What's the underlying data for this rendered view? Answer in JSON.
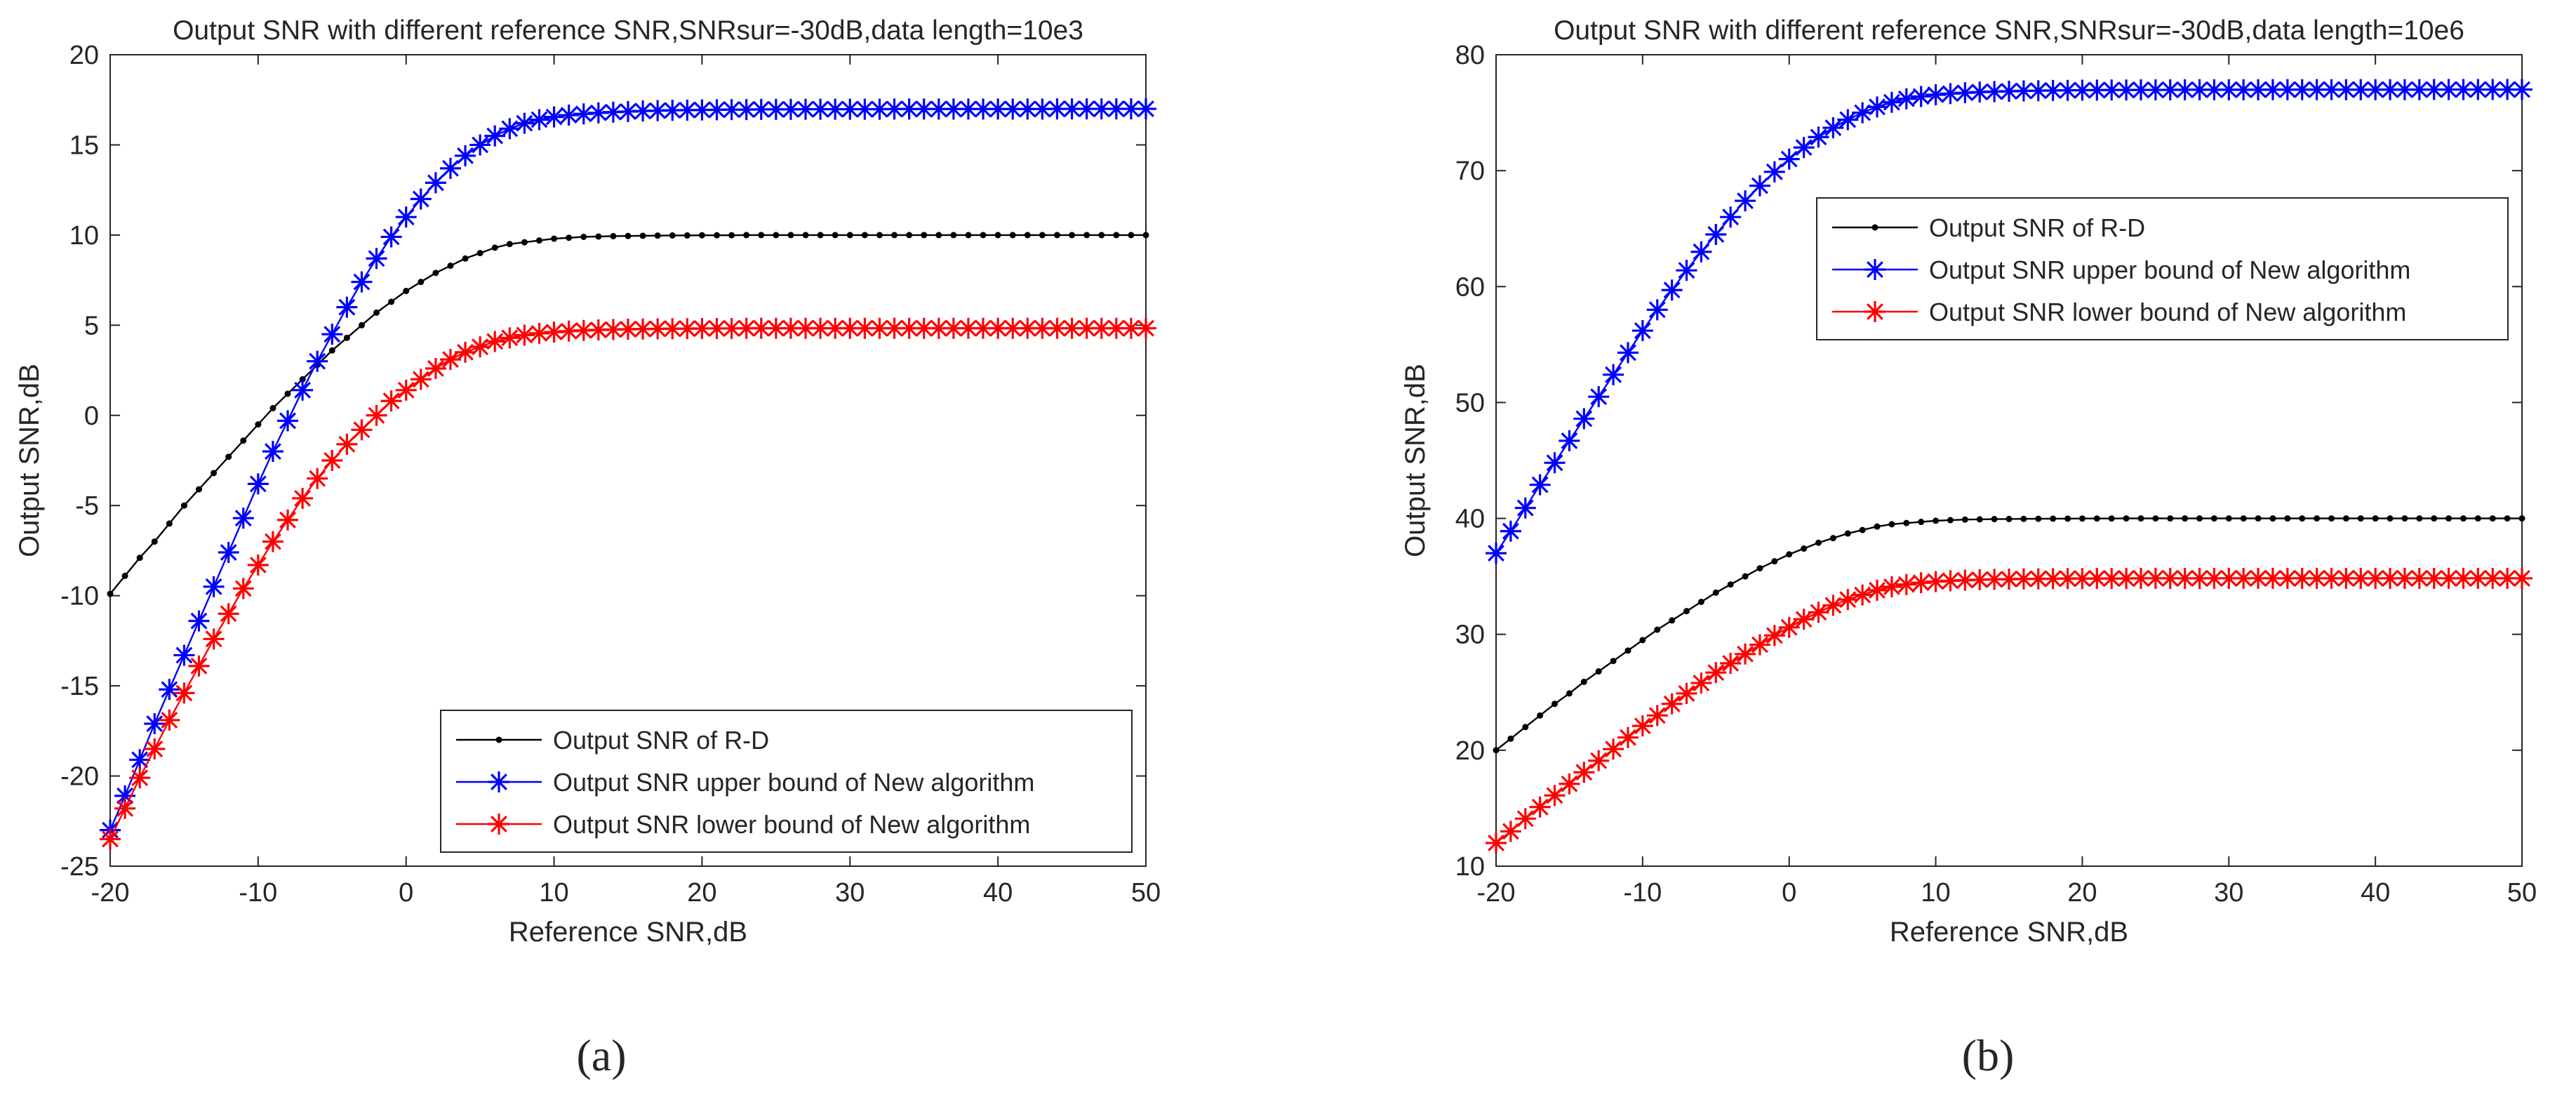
{
  "chart_data": [
    {
      "type": "line",
      "panel": "a",
      "panel_label": "(a)",
      "title": "Output SNR with different reference SNR,SNRsur=-30dB,data length=10e3",
      "xlabel": "Reference SNR,dB",
      "ylabel": "Output SNR,dB",
      "xlim": [
        -20,
        50
      ],
      "ylim": [
        -25,
        20
      ],
      "xticks": [
        -20,
        -10,
        0,
        10,
        20,
        30,
        40,
        50
      ],
      "yticks": [
        -25,
        -20,
        -15,
        -10,
        -5,
        0,
        5,
        10,
        15,
        20
      ],
      "grid": false,
      "legend_position": "bottom-right",
      "series": [
        {
          "name": "Output SNR of R-D",
          "color": "#000000",
          "marker": "dot",
          "x": [
            -20,
            -19,
            -18,
            -17,
            -16,
            -15,
            -14,
            -13,
            -12,
            -11,
            -10,
            -9,
            -8,
            -7,
            -6,
            -5,
            -4,
            -3,
            -2,
            -1,
            0,
            1,
            2,
            3,
            4,
            5,
            6,
            7,
            8,
            9,
            10,
            11,
            12,
            13,
            14,
            15,
            16,
            17,
            18,
            19,
            20,
            21,
            22,
            23,
            24,
            25,
            26,
            27,
            28,
            29,
            30,
            31,
            32,
            33,
            34,
            35,
            36,
            37,
            38,
            39,
            40,
            41,
            42,
            43,
            44,
            45,
            46,
            47,
            48,
            49,
            50
          ],
          "values": [
            -9.9,
            -8.9,
            -7.9,
            -7.0,
            -6.0,
            -5.0,
            -4.1,
            -3.2,
            -2.3,
            -1.4,
            -0.5,
            0.4,
            1.2,
            2.0,
            2.8,
            3.6,
            4.3,
            5.0,
            5.7,
            6.3,
            6.9,
            7.4,
            7.9,
            8.3,
            8.7,
            9.0,
            9.3,
            9.5,
            9.6,
            9.7,
            9.8,
            9.85,
            9.9,
            9.92,
            9.94,
            9.95,
            9.96,
            9.97,
            9.98,
            9.98,
            9.99,
            9.99,
            9.99,
            10,
            10,
            10,
            10,
            10,
            10,
            10,
            10,
            10,
            10,
            10,
            10,
            10,
            10,
            10,
            10,
            10,
            10,
            10,
            10,
            10,
            10,
            10,
            10,
            10,
            10,
            10,
            10
          ]
        },
        {
          "name": "Output SNR upper bound of New algorithm",
          "color": "#0000ff",
          "marker": "star",
          "x": [
            -20,
            -19,
            -18,
            -17,
            -16,
            -15,
            -14,
            -13,
            -12,
            -11,
            -10,
            -9,
            -8,
            -7,
            -6,
            -5,
            -4,
            -3,
            -2,
            -1,
            0,
            1,
            2,
            3,
            4,
            5,
            6,
            7,
            8,
            9,
            10,
            11,
            12,
            13,
            14,
            15,
            16,
            17,
            18,
            19,
            20,
            21,
            22,
            23,
            24,
            25,
            26,
            27,
            28,
            29,
            30,
            31,
            32,
            33,
            34,
            35,
            36,
            37,
            38,
            39,
            40,
            41,
            42,
            43,
            44,
            45,
            46,
            47,
            48,
            49,
            50
          ],
          "values": [
            -23.0,
            -21.1,
            -19.1,
            -17.1,
            -15.2,
            -13.3,
            -11.4,
            -9.5,
            -7.6,
            -5.7,
            -3.8,
            -2.0,
            -0.3,
            1.4,
            3.0,
            4.5,
            6.0,
            7.4,
            8.7,
            9.9,
            11.0,
            12.0,
            12.9,
            13.7,
            14.4,
            15.0,
            15.5,
            15.9,
            16.2,
            16.4,
            16.55,
            16.65,
            16.72,
            16.78,
            16.82,
            16.85,
            16.88,
            16.9,
            16.92,
            16.93,
            16.94,
            16.95,
            16.96,
            16.96,
            16.97,
            16.97,
            16.97,
            16.98,
            16.98,
            16.98,
            16.98,
            16.98,
            16.98,
            16.99,
            16.99,
            16.99,
            16.99,
            16.99,
            16.99,
            16.99,
            16.99,
            16.99,
            16.99,
            16.99,
            17,
            17,
            17,
            17,
            17,
            17,
            17
          ]
        },
        {
          "name": "Output SNR lower bound of New algorithm",
          "color": "#ff0000",
          "marker": "star",
          "x": [
            -20,
            -19,
            -18,
            -17,
            -16,
            -15,
            -14,
            -13,
            -12,
            -11,
            -10,
            -9,
            -8,
            -7,
            -6,
            -5,
            -4,
            -3,
            -2,
            -1,
            0,
            1,
            2,
            3,
            4,
            5,
            6,
            7,
            8,
            9,
            10,
            11,
            12,
            13,
            14,
            15,
            16,
            17,
            18,
            19,
            20,
            21,
            22,
            23,
            24,
            25,
            26,
            27,
            28,
            29,
            30,
            31,
            32,
            33,
            34,
            35,
            36,
            37,
            38,
            39,
            40,
            41,
            42,
            43,
            44,
            45,
            46,
            47,
            48,
            49,
            50
          ],
          "values": [
            -23.5,
            -21.8,
            -20.1,
            -18.5,
            -16.9,
            -15.4,
            -13.9,
            -12.4,
            -11.0,
            -9.6,
            -8.3,
            -7.0,
            -5.8,
            -4.6,
            -3.5,
            -2.5,
            -1.6,
            -0.8,
            0.0,
            0.8,
            1.4,
            2.0,
            2.6,
            3.1,
            3.5,
            3.8,
            4.1,
            4.3,
            4.45,
            4.55,
            4.62,
            4.67,
            4.71,
            4.74,
            4.76,
            4.78,
            4.79,
            4.8,
            4.81,
            4.81,
            4.82,
            4.82,
            4.82,
            4.83,
            4.83,
            4.83,
            4.83,
            4.83,
            4.83,
            4.83,
            4.83,
            4.83,
            4.83,
            4.83,
            4.83,
            4.83,
            4.83,
            4.83,
            4.83,
            4.83,
            4.83,
            4.83,
            4.83,
            4.83,
            4.83,
            4.83,
            4.83,
            4.83,
            4.83,
            4.83,
            4.83
          ]
        }
      ]
    },
    {
      "type": "line",
      "panel": "b",
      "panel_label": "(b)",
      "title": "Output SNR with different reference SNR,SNRsur=-30dB,data length=10e6",
      "xlabel": "Reference SNR,dB",
      "ylabel": "Output SNR,dB",
      "xlim": [
        -20,
        50
      ],
      "ylim": [
        10,
        80
      ],
      "xticks": [
        -20,
        -10,
        0,
        10,
        20,
        30,
        40,
        50
      ],
      "yticks": [
        10,
        20,
        30,
        40,
        50,
        60,
        70,
        80
      ],
      "grid": false,
      "legend_position": "top-right",
      "series": [
        {
          "name": "Output SNR of R-D",
          "color": "#000000",
          "marker": "dot",
          "x": [
            -20,
            -19,
            -18,
            -17,
            -16,
            -15,
            -14,
            -13,
            -12,
            -11,
            -10,
            -9,
            -8,
            -7,
            -6,
            -5,
            -4,
            -3,
            -2,
            -1,
            0,
            1,
            2,
            3,
            4,
            5,
            6,
            7,
            8,
            9,
            10,
            11,
            12,
            13,
            14,
            15,
            16,
            17,
            18,
            19,
            20,
            21,
            22,
            23,
            24,
            25,
            26,
            27,
            28,
            29,
            30,
            31,
            32,
            33,
            34,
            35,
            36,
            37,
            38,
            39,
            40,
            41,
            42,
            43,
            44,
            45,
            46,
            47,
            48,
            49,
            50
          ],
          "values": [
            20.0,
            21.0,
            22.0,
            23.0,
            24.0,
            24.9,
            25.9,
            26.8,
            27.7,
            28.6,
            29.5,
            30.4,
            31.2,
            32.0,
            32.8,
            33.6,
            34.3,
            35.0,
            35.7,
            36.3,
            36.9,
            37.4,
            37.9,
            38.3,
            38.7,
            39.0,
            39.3,
            39.5,
            39.6,
            39.7,
            39.8,
            39.85,
            39.9,
            39.92,
            39.94,
            39.95,
            39.96,
            39.97,
            39.98,
            39.98,
            39.99,
            39.99,
            39.99,
            40,
            40,
            40,
            40,
            40,
            40,
            40,
            40,
            40,
            40,
            40,
            40,
            40,
            40,
            40,
            40,
            40,
            40,
            40,
            40,
            40,
            40,
            40,
            40,
            40,
            40,
            40,
            40
          ]
        },
        {
          "name": "Output SNR upper bound of New algorithm",
          "color": "#0000ff",
          "marker": "star",
          "x": [
            -20,
            -19,
            -18,
            -17,
            -16,
            -15,
            -14,
            -13,
            -12,
            -11,
            -10,
            -9,
            -8,
            -7,
            -6,
            -5,
            -4,
            -3,
            -2,
            -1,
            0,
            1,
            2,
            3,
            4,
            5,
            6,
            7,
            8,
            9,
            10,
            11,
            12,
            13,
            14,
            15,
            16,
            17,
            18,
            19,
            20,
            21,
            22,
            23,
            24,
            25,
            26,
            27,
            28,
            29,
            30,
            31,
            32,
            33,
            34,
            35,
            36,
            37,
            38,
            39,
            40,
            41,
            42,
            43,
            44,
            45,
            46,
            47,
            48,
            49,
            50
          ],
          "values": [
            37.0,
            38.9,
            40.9,
            42.9,
            44.8,
            46.7,
            48.6,
            50.5,
            52.4,
            54.3,
            56.2,
            58.0,
            59.7,
            61.4,
            63.0,
            64.5,
            66.0,
            67.4,
            68.7,
            69.9,
            71.0,
            72.0,
            72.9,
            73.7,
            74.4,
            75.0,
            75.5,
            75.9,
            76.2,
            76.4,
            76.55,
            76.65,
            76.72,
            76.78,
            76.82,
            76.85,
            76.88,
            76.9,
            76.92,
            76.93,
            76.94,
            76.95,
            76.96,
            76.96,
            76.97,
            76.97,
            76.97,
            76.98,
            76.98,
            76.98,
            76.98,
            76.98,
            76.98,
            76.99,
            76.99,
            76.99,
            76.99,
            76.99,
            76.99,
            76.99,
            76.99,
            76.99,
            76.99,
            76.99,
            77,
            77,
            77,
            77,
            77,
            77,
            77
          ]
        },
        {
          "name": "Output SNR lower bound of New algorithm",
          "color": "#ff0000",
          "marker": "star",
          "x": [
            -20,
            -19,
            -18,
            -17,
            -16,
            -15,
            -14,
            -13,
            -12,
            -11,
            -10,
            -9,
            -8,
            -7,
            -6,
            -5,
            -4,
            -3,
            -2,
            -1,
            0,
            1,
            2,
            3,
            4,
            5,
            6,
            7,
            8,
            9,
            10,
            11,
            12,
            13,
            14,
            15,
            16,
            17,
            18,
            19,
            20,
            21,
            22,
            23,
            24,
            25,
            26,
            27,
            28,
            29,
            30,
            31,
            32,
            33,
            34,
            35,
            36,
            37,
            38,
            39,
            40,
            41,
            42,
            43,
            44,
            45,
            46,
            47,
            48,
            49,
            50
          ],
          "values": [
            12.0,
            13.0,
            14.1,
            15.1,
            16.1,
            17.1,
            18.1,
            19.1,
            20.1,
            21.1,
            22.1,
            23.0,
            24.0,
            24.9,
            25.8,
            26.7,
            27.5,
            28.3,
            29.1,
            29.9,
            30.6,
            31.3,
            31.9,
            32.5,
            33.0,
            33.4,
            33.8,
            34.1,
            34.3,
            34.45,
            34.55,
            34.62,
            34.67,
            34.71,
            34.74,
            34.76,
            34.78,
            34.79,
            34.8,
            34.81,
            34.81,
            34.82,
            34.82,
            34.82,
            34.83,
            34.83,
            34.83,
            34.83,
            34.83,
            34.83,
            34.83,
            34.83,
            34.83,
            34.83,
            34.83,
            34.83,
            34.83,
            34.83,
            34.83,
            34.83,
            34.83,
            34.83,
            34.83,
            34.83,
            34.83,
            34.83,
            34.83,
            34.83,
            34.83,
            34.83,
            34.83
          ]
        }
      ]
    }
  ]
}
